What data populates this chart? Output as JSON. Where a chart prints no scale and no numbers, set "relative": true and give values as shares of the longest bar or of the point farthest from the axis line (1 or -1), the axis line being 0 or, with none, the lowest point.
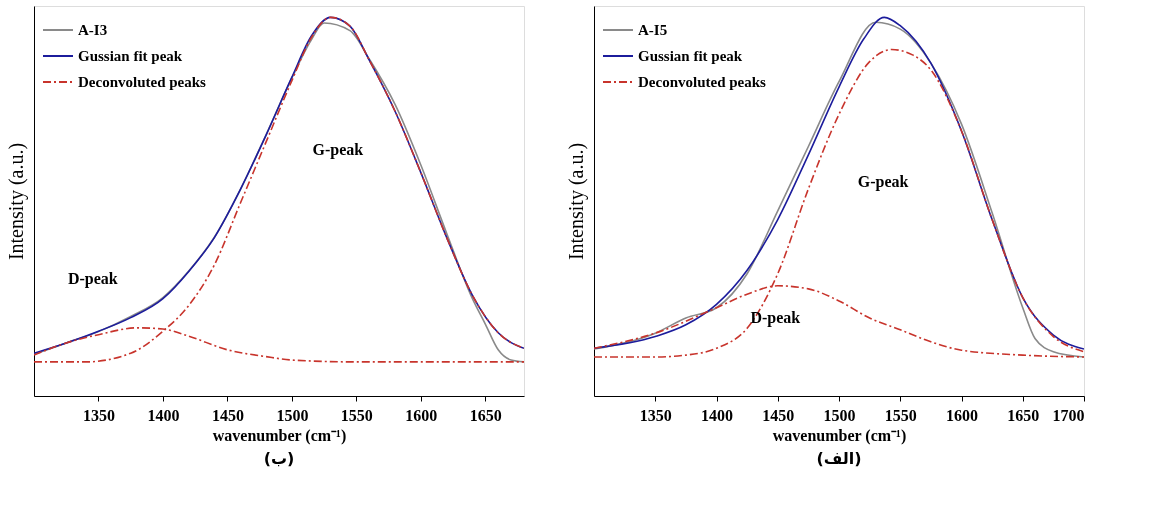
{
  "chart_data": [
    {
      "type": "line",
      "relative": true,
      "title": "(ب)",
      "xlabel": "wavenumber (cm⁻¹)",
      "ylabel": "Intensity (a.u.)",
      "xlim": [
        1300,
        1680
      ],
      "xticks": [
        1350,
        1400,
        1450,
        1500,
        1550,
        1600,
        1650
      ],
      "tick_labels": "x",
      "legend": "top left",
      "grid": false,
      "marker": "none",
      "annotations": [
        "D-peak",
        "G-peak"
      ],
      "series": [
        {
          "name": "A-I3",
          "color": "#8a8a8a",
          "line_style": "solid",
          "x": [
            1300,
            1325,
            1350,
            1375,
            1400,
            1420,
            1440,
            1460,
            1480,
            1500,
            1515,
            1525,
            1545,
            1560,
            1580,
            1600,
            1620,
            1640,
            1650,
            1660,
            1670,
            1680
          ],
          "values": [
            0.11,
            0.14,
            0.17,
            0.21,
            0.26,
            0.33,
            0.42,
            0.545,
            0.69,
            0.84,
            0.94,
            0.985,
            0.965,
            0.89,
            0.77,
            0.61,
            0.43,
            0.257,
            0.19,
            0.122,
            0.095,
            0.09
          ]
        },
        {
          "name": "Gussian fit peak",
          "color": "#1c1c9c",
          "line_style": "solid",
          "x": [
            1300,
            1325,
            1350,
            1375,
            1400,
            1420,
            1440,
            1460,
            1480,
            1500,
            1515,
            1530,
            1545,
            1560,
            1580,
            1600,
            1620,
            1640,
            1660,
            1680
          ],
          "values": [
            0.113,
            0.14,
            0.171,
            0.207,
            0.257,
            0.329,
            0.419,
            0.545,
            0.689,
            0.842,
            0.95,
            1.0,
            0.977,
            0.887,
            0.752,
            0.59,
            0.419,
            0.266,
            0.167,
            0.126
          ]
        },
        {
          "name": "Deconvoluted peaks",
          "color": "#c8342c",
          "line_style": "dashed",
          "x": [
            1300,
            1340,
            1375,
            1400,
            1420,
            1440,
            1460,
            1480,
            1500,
            1515,
            1530,
            1545,
            1560,
            1580,
            1600,
            1620,
            1640,
            1660,
            1680
          ],
          "values": [
            0.09,
            0.09,
            0.113,
            0.171,
            0.239,
            0.347,
            0.509,
            0.671,
            0.833,
            0.946,
            1.0,
            0.977,
            0.887,
            0.752,
            0.59,
            0.419,
            0.266,
            0.167,
            0.126
          ]
        },
        {
          "color": "#c8342c",
          "line_style": "dashed",
          "x": [
            1300,
            1325,
            1350,
            1380,
            1400,
            1420,
            1450,
            1480,
            1500,
            1550,
            1680
          ],
          "values": [
            0.108,
            0.14,
            0.162,
            0.18,
            0.177,
            0.158,
            0.122,
            0.104,
            0.095,
            0.09,
            0.09
          ]
        }
      ]
    },
    {
      "type": "line",
      "relative": true,
      "title": "(الف)",
      "xlabel": "wavenumber (cm⁻¹)",
      "ylabel": "Intensity (a.u.)",
      "xlim": [
        1300,
        1700
      ],
      "xticks": [
        1350,
        1400,
        1450,
        1500,
        1550,
        1600,
        1650,
        1700
      ],
      "tick_labels": "x",
      "legend": "top left",
      "grid": false,
      "marker": "none",
      "annotations": [
        "D-peak",
        "G-peak"
      ],
      "series": [
        {
          "name": "A-I5",
          "color": "#8a8a8a",
          "line_style": "solid",
          "x": [
            1300,
            1350,
            1375,
            1400,
            1425,
            1450,
            1475,
            1500,
            1530,
            1550,
            1575,
            1600,
            1625,
            1650,
            1660,
            1675,
            1700
          ],
          "values": [
            0.124,
            0.166,
            0.206,
            0.233,
            0.323,
            0.489,
            0.659,
            0.83,
            0.987,
            0.969,
            0.879,
            0.718,
            0.484,
            0.233,
            0.152,
            0.117,
            0.103
          ]
        },
        {
          "name": "Gussian fit peak",
          "color": "#1c1c9c",
          "line_style": "solid",
          "x": [
            1300,
            1350,
            1375,
            1400,
            1425,
            1450,
            1475,
            1500,
            1520,
            1537,
            1550,
            1575,
            1600,
            1625,
            1650,
            1675,
            1700
          ],
          "values": [
            0.126,
            0.157,
            0.188,
            0.242,
            0.332,
            0.466,
            0.637,
            0.816,
            0.942,
            1.0,
            0.978,
            0.879,
            0.7,
            0.466,
            0.26,
            0.161,
            0.124
          ]
        },
        {
          "name": "Deconvoluted peaks",
          "color": "#c8342c",
          "line_style": "dashed",
          "x": [
            1300,
            1350,
            1375,
            1400,
            1425,
            1450,
            1475,
            1500,
            1525,
            1543,
            1560,
            1575,
            1600,
            1625,
            1650,
            1675,
            1700
          ],
          "values": [
            0.103,
            0.103,
            0.108,
            0.126,
            0.179,
            0.323,
            0.547,
            0.744,
            0.883,
            0.915,
            0.901,
            0.861,
            0.7,
            0.466,
            0.26,
            0.157,
            0.117
          ]
        },
        {
          "color": "#c8342c",
          "line_style": "dashed",
          "x": [
            1300,
            1350,
            1400,
            1425,
            1450,
            1475,
            1500,
            1525,
            1550,
            1575,
            1600,
            1650,
            1700
          ],
          "values": [
            0.126,
            0.166,
            0.233,
            0.269,
            0.291,
            0.283,
            0.251,
            0.206,
            0.175,
            0.143,
            0.121,
            0.108,
            0.103
          ]
        }
      ]
    }
  ]
}
